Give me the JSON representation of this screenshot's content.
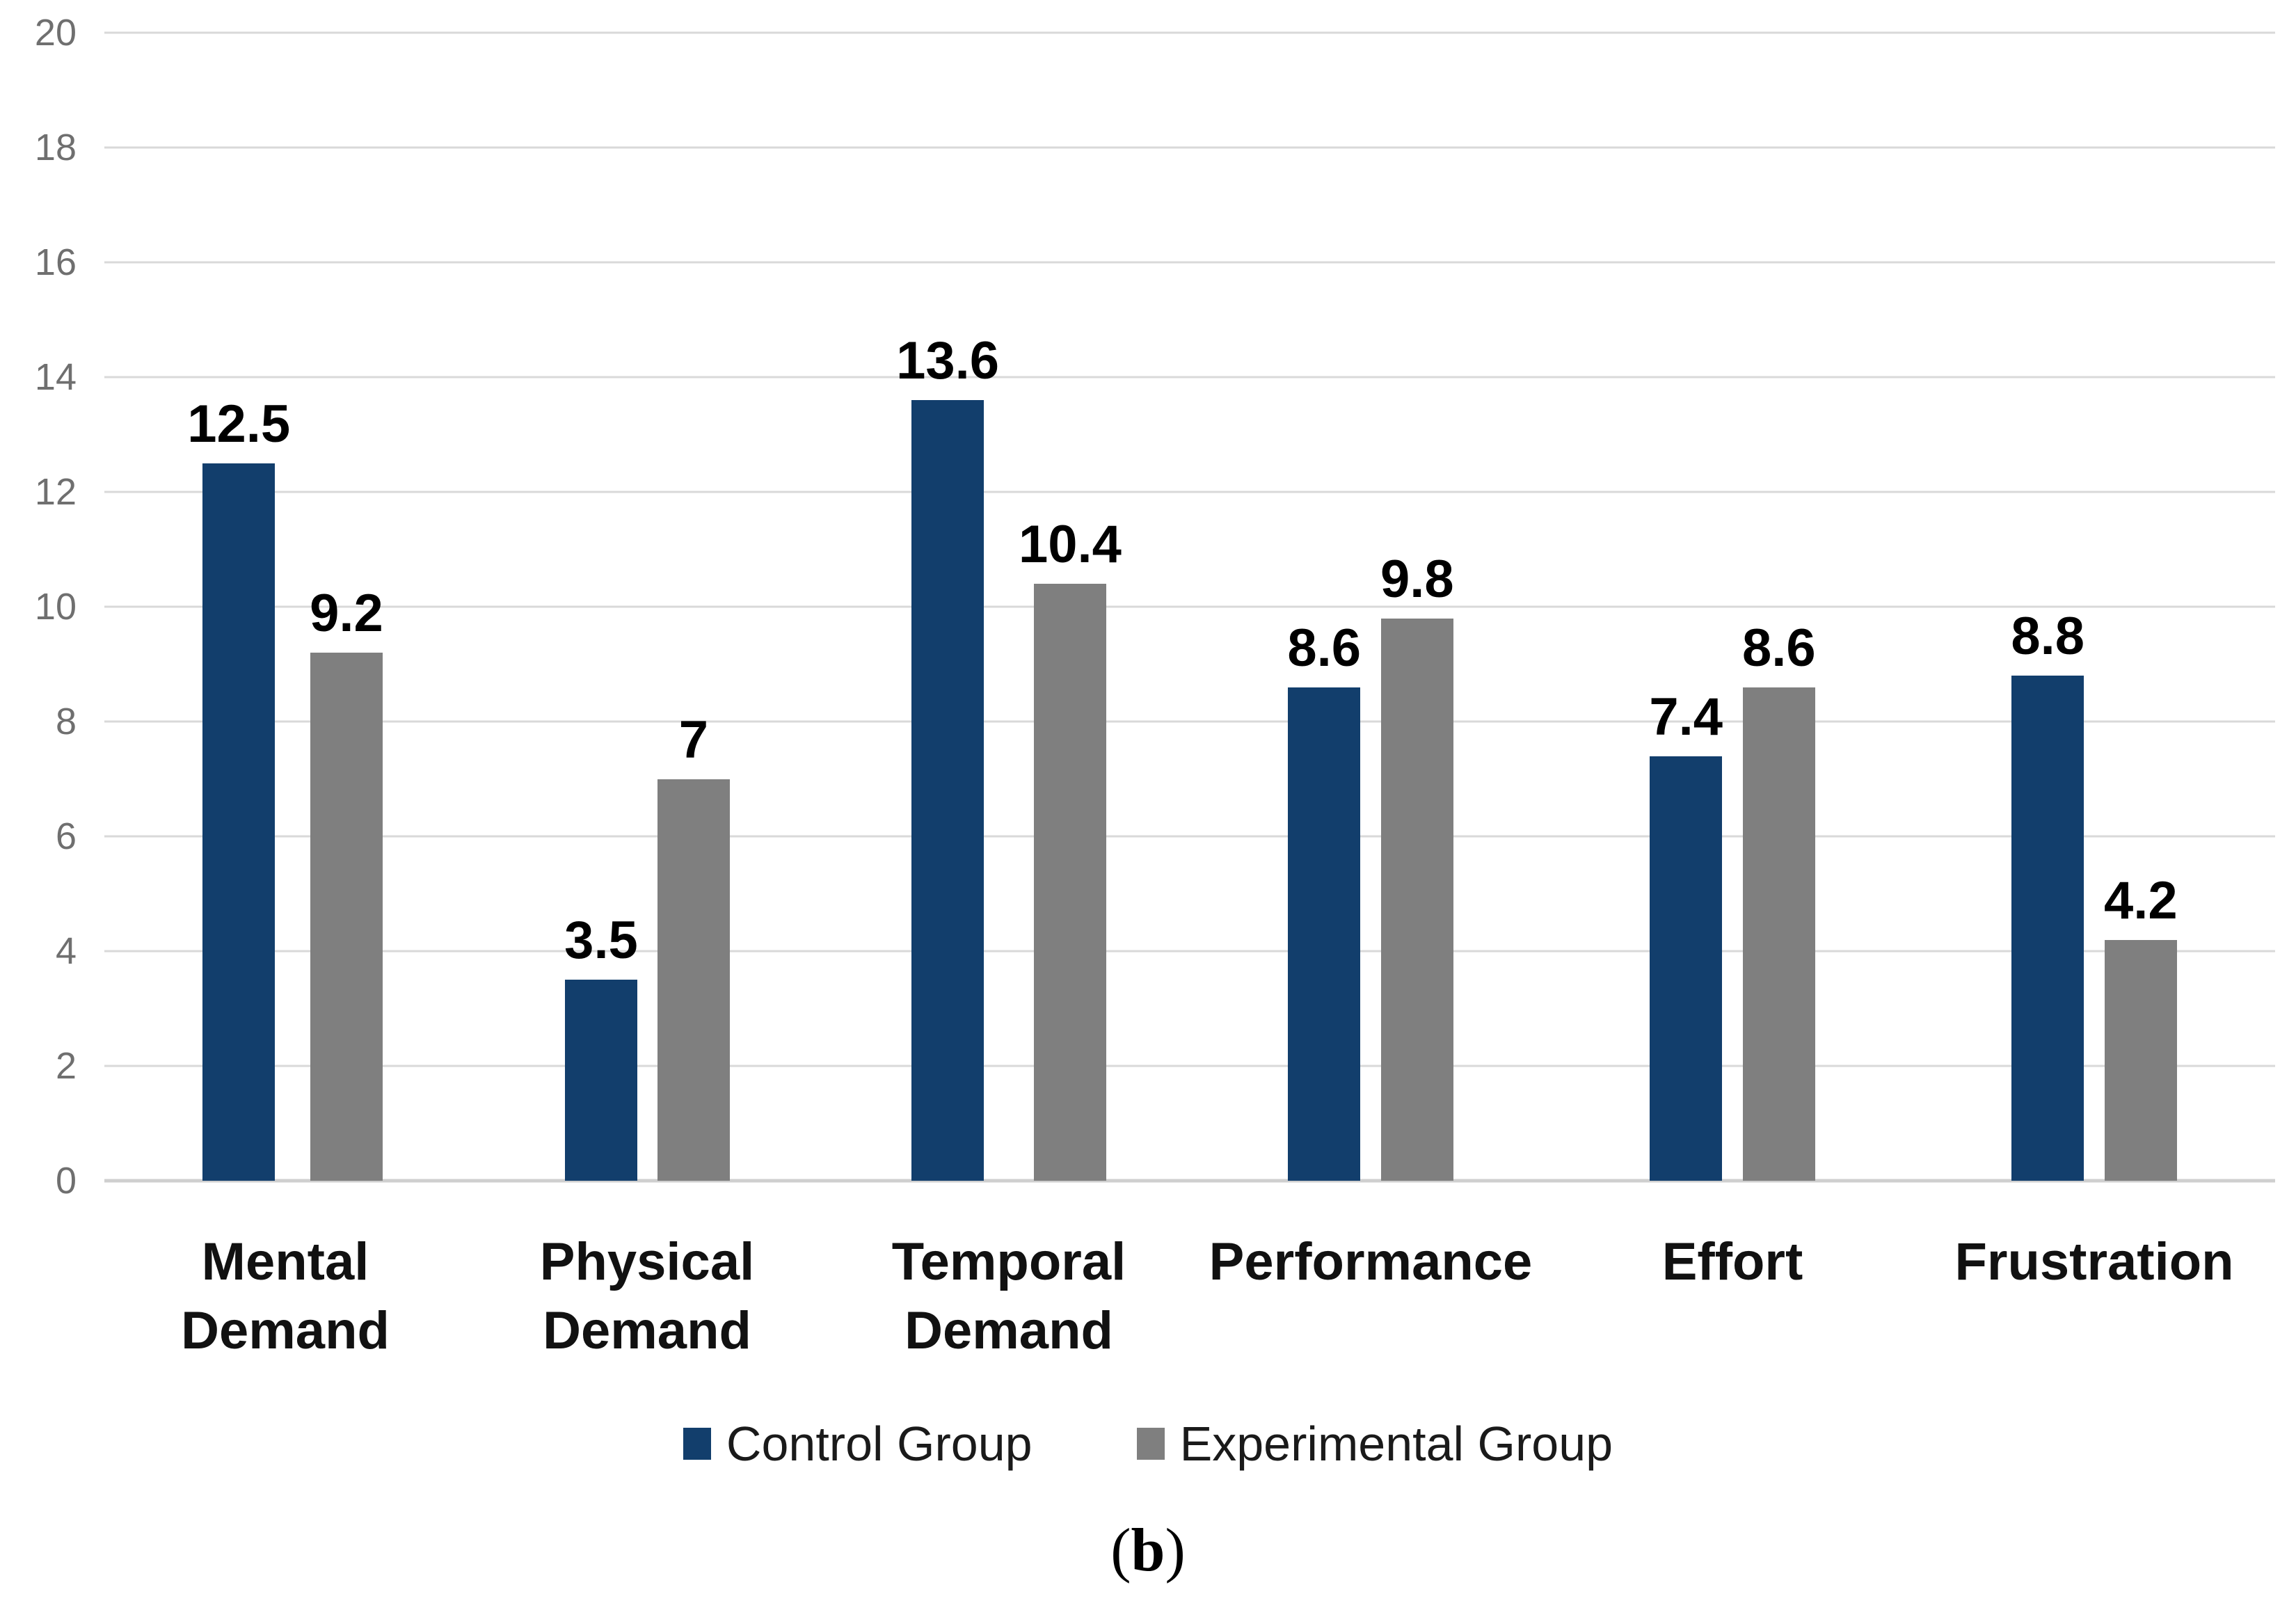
{
  "figure": {
    "caption": {
      "prefix": "(",
      "letter": "b",
      "suffix": ")"
    }
  },
  "legend": {
    "items": [
      {
        "label": "Control Group",
        "color": "#123E6C"
      },
      {
        "label": "Experimental Group",
        "color": "#7F7F7F"
      }
    ]
  },
  "chart_data": {
    "type": "bar",
    "title": "",
    "xlabel": "",
    "ylabel": "",
    "categories": [
      "Mental\nDemand",
      "Physical\nDemand",
      "Temporal\nDemand",
      "Performance",
      "Effort",
      "Frustration"
    ],
    "series": [
      {
        "name": "Control Group",
        "color": "#123E6C",
        "values": [
          12.5,
          3.5,
          13.6,
          8.6,
          7.4,
          8.8
        ]
      },
      {
        "name": "Experimental Group",
        "color": "#7F7F7F",
        "values": [
          9.2,
          7,
          10.4,
          9.8,
          8.6,
          4.2
        ]
      }
    ],
    "ylim": [
      0,
      20
    ],
    "ytick_step": 2,
    "ytick_labels": [
      "0",
      "2",
      "4",
      "6",
      "8",
      "10",
      "12",
      "14",
      "16",
      "18",
      "20"
    ],
    "grid": "horizontal-major",
    "gridline_color": "#D9D9D9",
    "axis_tick_color": "#6F6F6F",
    "value_labels_shown": true,
    "legend_position": "bottom"
  }
}
